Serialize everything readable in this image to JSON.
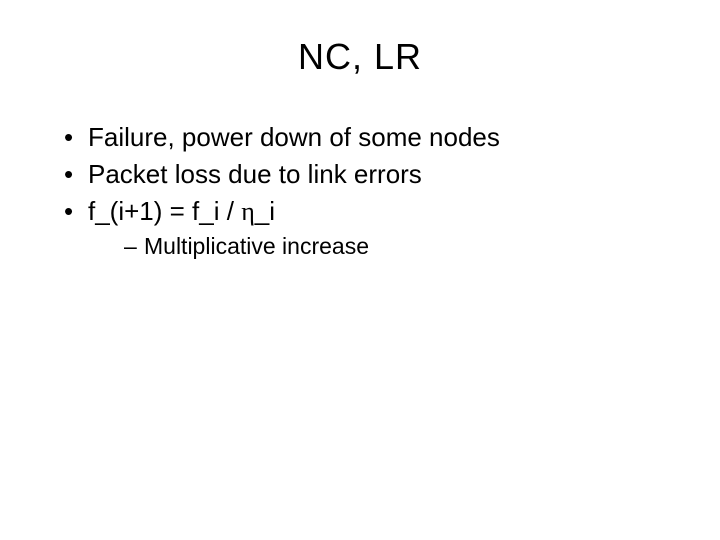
{
  "title": "NC, LR",
  "bullets": [
    "Failure, power down of some nodes",
    "Packet loss due to link errors",
    "f_(i+1) = f_i / η_i"
  ],
  "bullet3_parts": {
    "pre": "f_(i+1) = f_i / ",
    "eta": "η",
    "post": "_i"
  },
  "sub_bullet": "Multiplicative increase",
  "colors": {
    "background": "#ffffff",
    "text": "#000000"
  },
  "fontsizes": {
    "title": 36,
    "bullet": 26,
    "sub": 23
  }
}
